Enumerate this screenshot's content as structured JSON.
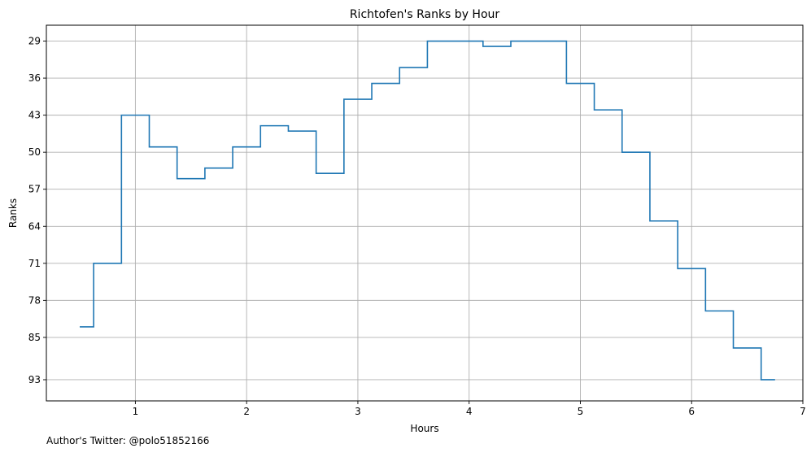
{
  "chart_data": {
    "type": "line",
    "step": "post",
    "title": "Richtofen's Ranks by Hour",
    "xlabel": "Hours",
    "ylabel": "Ranks",
    "xlim": [
      0.2,
      7.0
    ],
    "ylim": [
      97,
      26
    ],
    "y_inverted": true,
    "grid": true,
    "x_ticks": [
      1,
      2,
      3,
      4,
      5,
      6,
      7
    ],
    "x_tick_labels": [
      "1",
      "2",
      "3",
      "4",
      "5",
      "6",
      "7"
    ],
    "y_ticks": [
      29,
      36,
      43,
      50,
      57,
      64,
      71,
      78,
      85,
      93
    ],
    "y_tick_labels": [
      "29",
      "36",
      "43",
      "50",
      "57",
      "64",
      "71",
      "78",
      "85",
      "93"
    ],
    "series": [
      {
        "color": "#1f77b4",
        "x": [
          0.5,
          0.625,
          0.875,
          1.125,
          1.375,
          1.625,
          1.875,
          2.125,
          2.375,
          2.625,
          2.875,
          3.125,
          3.375,
          3.625,
          4.125,
          4.375,
          4.875,
          5.125,
          5.375,
          5.625,
          5.875,
          6.125,
          6.375,
          6.625,
          6.75
        ],
        "y": [
          83,
          71,
          43,
          49,
          55,
          53,
          49,
          45,
          46,
          54,
          40,
          37,
          34,
          29,
          30,
          29,
          37,
          42,
          50,
          63,
          72,
          80,
          87,
          93,
          93
        ]
      }
    ]
  },
  "footer": {
    "credit": "Author's Twitter: @polo51852166"
  }
}
